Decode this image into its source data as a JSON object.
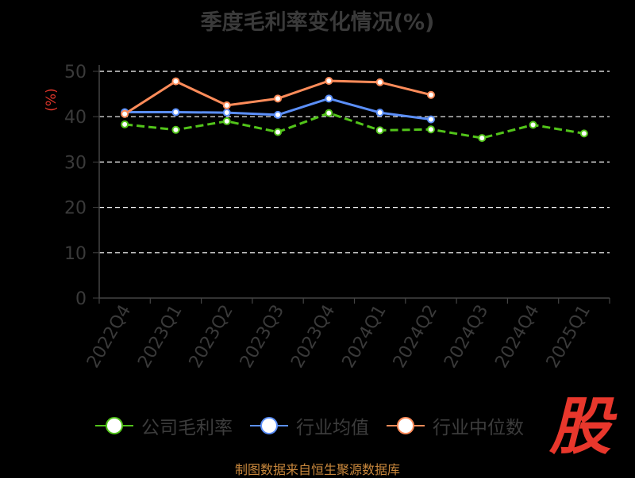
{
  "title": "季度毛利率变化情况(%)",
  "source": "制图数据来自恒生聚源数据库",
  "logo_text": "股",
  "chart_data": {
    "type": "line",
    "title": "季度毛利率变化情况(%)",
    "ylabel": "(%)",
    "xlabel": "",
    "ylim": [
      0,
      50
    ],
    "yticks": [
      "0",
      "10",
      "20",
      "30",
      "40",
      "50"
    ],
    "grid": "horizontal dashed",
    "legend_position": "bottom",
    "categories": [
      "2022Q4",
      "2023Q1",
      "2023Q2",
      "2023Q3",
      "2023Q4",
      "2024Q1",
      "2024Q2",
      "2024Q3",
      "2024Q4",
      "2025Q1"
    ],
    "series": [
      {
        "name": "公司毛利率",
        "color": "#52c41a",
        "dashed": true,
        "values": [
          38.3,
          37.1,
          39.0,
          36.6,
          40.8,
          37.0,
          37.2,
          35.3,
          38.2,
          36.3
        ]
      },
      {
        "name": "行业均值",
        "color": "#5b8ff9",
        "dashed": false,
        "values": [
          41.0,
          41.0,
          40.9,
          40.4,
          44.0,
          40.9,
          39.4,
          null,
          null,
          null
        ]
      },
      {
        "name": "行业中位数",
        "color": "#ff8c5a",
        "dashed": false,
        "values": [
          40.6,
          47.8,
          42.5,
          44.0,
          47.9,
          47.6,
          44.8,
          null,
          null,
          null
        ]
      }
    ]
  }
}
